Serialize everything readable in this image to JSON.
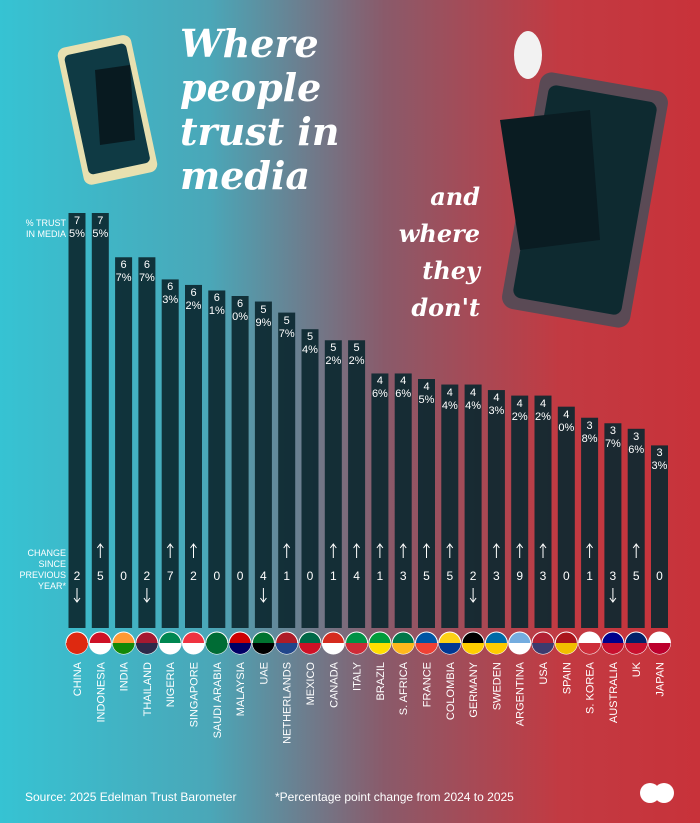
{
  "title": "Where people trust in media",
  "subtitle": "and where they don't",
  "source": "Source: 2025 Edelman Trust Barometer",
  "footnote": "*Percentage point change from 2024 to 2025",
  "chart_data": {
    "type": "bar",
    "y_label": "% TRUST IN MEDIA",
    "change_label": "CHANGE SINCE PREVIOUS YEAR*",
    "color": "#0c2830",
    "categories": [
      "CHINA",
      "INDONESIA",
      "INDIA",
      "THAILAND",
      "NIGERIA",
      "SINGAPORE",
      "SAUDI ARABIA",
      "MALAYSIA",
      "UAE",
      "NETHERLANDS",
      "MEXICO",
      "CANADA",
      "ITALY",
      "BRAZIL",
      "S. AFRICA",
      "FRANCE",
      "COLOMBIA",
      "GERMANY",
      "SWEDEN",
      "ARGENTINA",
      "USA",
      "SPAIN",
      "S. KOREA",
      "AUSTRALIA",
      "UK",
      "JAPAN"
    ],
    "values": [
      75,
      75,
      67,
      67,
      63,
      62,
      61,
      60,
      59,
      57,
      54,
      52,
      52,
      46,
      46,
      45,
      44,
      44,
      43,
      42,
      42,
      40,
      38,
      37,
      36,
      33
    ],
    "value_labels": [
      "75%",
      "75%",
      "67%",
      "67%",
      "63%",
      "62%",
      "61%",
      "60%",
      "59%",
      "57%",
      "54%",
      "52%",
      "52%",
      "46%",
      "46%",
      "45%",
      "44%",
      "44%",
      "43%",
      "42%",
      "42%",
      "40%",
      "38%",
      "37%",
      "36%",
      "33%"
    ],
    "change_values": [
      -2,
      5,
      0,
      -2,
      7,
      2,
      0,
      0,
      -4,
      1,
      0,
      1,
      4,
      1,
      3,
      5,
      5,
      -2,
      3,
      9,
      3,
      0,
      1,
      -3,
      5,
      0
    ],
    "change_value_labels": [
      "2",
      "5",
      "0",
      "2",
      "7",
      "2",
      "0",
      "0",
      "4",
      "1",
      "0",
      "1",
      "4",
      "1",
      "3",
      "5",
      "5",
      "2",
      "3",
      "9",
      "3",
      "0",
      "1",
      "3",
      "5",
      "0"
    ]
  }
}
